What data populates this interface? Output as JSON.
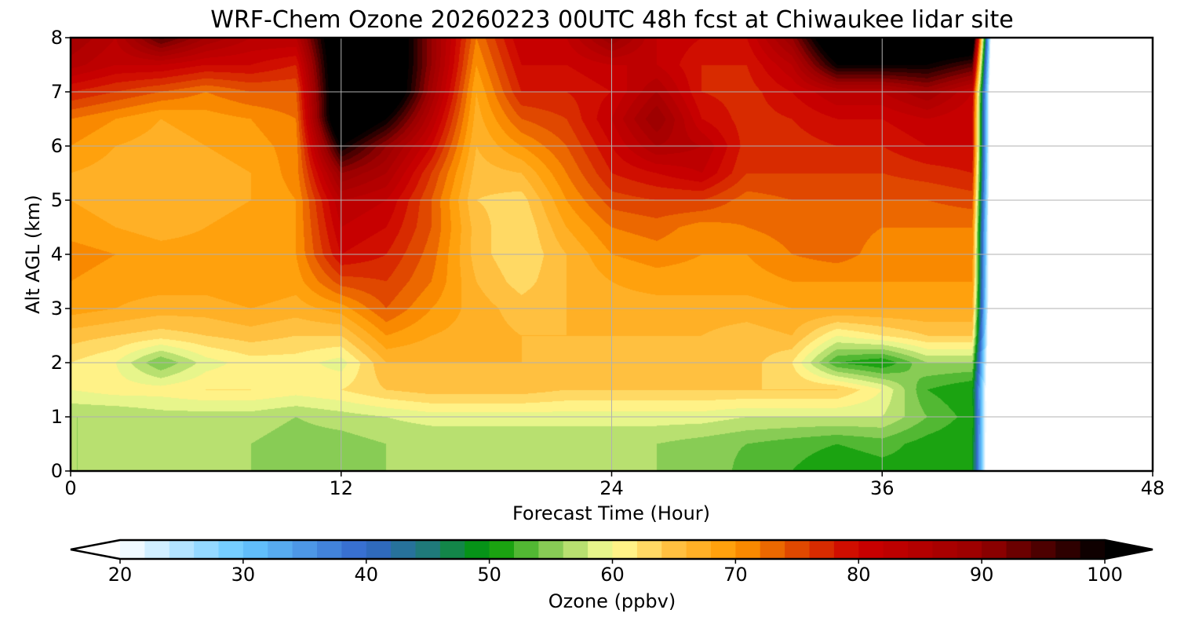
{
  "chart_data": {
    "type": "heatmap",
    "title": "WRF-Chem Ozone  20260223 00UTC 48h fcst at Chiwaukee lidar site",
    "xlabel": "Forecast Time (Hour)",
    "ylabel": "Alt AGL (km)",
    "xlim": [
      0,
      48
    ],
    "ylim": [
      0,
      8
    ],
    "xticks": [
      "0",
      "12",
      "24",
      "36",
      "48"
    ],
    "yticks": [
      "0",
      "1",
      "2",
      "3",
      "4",
      "5",
      "6",
      "7",
      "8"
    ],
    "grid": true,
    "x_hours": [
      0,
      2,
      4,
      6,
      8,
      10,
      12,
      14,
      16,
      18,
      20,
      22,
      24,
      26,
      28,
      30,
      32,
      34,
      36,
      38,
      40,
      41
    ],
    "y_km": [
      0,
      0.5,
      1,
      1.5,
      2,
      2.5,
      3,
      3.5,
      4,
      4.5,
      5,
      5.5,
      6,
      6.5,
      7,
      7.5,
      8
    ],
    "ozone_ppbv_by_hour": [
      [
        56,
        56,
        56,
        60,
        62,
        65,
        69,
        70,
        71,
        69,
        68,
        68,
        70,
        72,
        78,
        85,
        88
      ],
      [
        56,
        56,
        56,
        61,
        60,
        64,
        68,
        69,
        70,
        68,
        67,
        67,
        68,
        70,
        76,
        82,
        84
      ],
      [
        56,
        56,
        57,
        61,
        54,
        63,
        67,
        69,
        69,
        67,
        66,
        66,
        67,
        68,
        74,
        82,
        95
      ],
      [
        56,
        56,
        57,
        62,
        59,
        64,
        67,
        69,
        69,
        68,
        67,
        67,
        68,
        69,
        72,
        80,
        88
      ],
      [
        56,
        56,
        57,
        62,
        61,
        65,
        68,
        70,
        70,
        69,
        68,
        68,
        69,
        70,
        74,
        80,
        84
      ],
      [
        55,
        55,
        56,
        61,
        61,
        64,
        67,
        69,
        70,
        70,
        70,
        71,
        71,
        72,
        74,
        78,
        84
      ],
      [
        55,
        55,
        57,
        62,
        59,
        64,
        69,
        75,
        80,
        82,
        84,
        90,
        100,
        110,
        110,
        110,
        110
      ],
      [
        56,
        56,
        58,
        64,
        66,
        70,
        74,
        76,
        78,
        80,
        82,
        86,
        90,
        100,
        110,
        110,
        110
      ],
      [
        56,
        56,
        59,
        65,
        66,
        68,
        70,
        72,
        73,
        74,
        74,
        76,
        80,
        84,
        88,
        90,
        90
      ],
      [
        56,
        56,
        59,
        65,
        66,
        67,
        67,
        66,
        65,
        65,
        64,
        65,
        66,
        67,
        68,
        70,
        72
      ],
      [
        56,
        56,
        59,
        65,
        66,
        66,
        65,
        63,
        62,
        62,
        63,
        66,
        70,
        74,
        78,
        80,
        82
      ],
      [
        56,
        56,
        59,
        64,
        65,
        66,
        66,
        66,
        66,
        68,
        70,
        72,
        74,
        76,
        78,
        80,
        82
      ],
      [
        56,
        56,
        59,
        64,
        65,
        66,
        67,
        68,
        70,
        72,
        75,
        78,
        80,
        82,
        80,
        82,
        90
      ],
      [
        56,
        56,
        59,
        64,
        65,
        66,
        67,
        69,
        71,
        73,
        76,
        80,
        86,
        90,
        86,
        82,
        82
      ],
      [
        56,
        55,
        59,
        64,
        65,
        66,
        67,
        69,
        70,
        71,
        76,
        82,
        84,
        80,
        78,
        78,
        80
      ],
      [
        53,
        54,
        58,
        64,
        65,
        65,
        67,
        69,
        70,
        72,
        73,
        76,
        77,
        77,
        77,
        78,
        80
      ],
      [
        52,
        53,
        58,
        64,
        62,
        66,
        68,
        70,
        72,
        73,
        74,
        76,
        77,
        78,
        80,
        84,
        90
      ],
      [
        50,
        52,
        58,
        64,
        52,
        60,
        68,
        70,
        73,
        73,
        74,
        76,
        78,
        80,
        84,
        100,
        110
      ],
      [
        51,
        53,
        58,
        60,
        50,
        62,
        68,
        70,
        71,
        72,
        74,
        76,
        78,
        80,
        84,
        100,
        110
      ],
      [
        51,
        51,
        54,
        52,
        56,
        64,
        68,
        70,
        71,
        72,
        74,
        77,
        80,
        82,
        88,
        100,
        110
      ],
      [
        50,
        50,
        51,
        50,
        56,
        64,
        68,
        70,
        71,
        72,
        75,
        78,
        80,
        80,
        82,
        95,
        110
      ],
      [
        0,
        0,
        0,
        0,
        0,
        0,
        0,
        0,
        0,
        0,
        0,
        0,
        0,
        0,
        0,
        0,
        0
      ]
    ],
    "data_end_hour": 41,
    "colorbar": {
      "label": "Ozone  (ppbv)",
      "min": 20,
      "max": 100,
      "step": 2,
      "extend": "both",
      "ticks": [
        "20",
        "30",
        "40",
        "50",
        "60",
        "70",
        "80",
        "90",
        "100"
      ],
      "color_anchors": [
        {
          "v": 20,
          "c": "#ffffff"
        },
        {
          "v": 30,
          "c": "#66c8ff"
        },
        {
          "v": 40,
          "c": "#3366cc"
        },
        {
          "v": 45,
          "c": "#1f7a7a"
        },
        {
          "v": 50,
          "c": "#009900"
        },
        {
          "v": 55,
          "c": "#88cc55"
        },
        {
          "v": 60,
          "c": "#ffff99"
        },
        {
          "v": 65,
          "c": "#ffc040"
        },
        {
          "v": 70,
          "c": "#ff9900"
        },
        {
          "v": 75,
          "c": "#e04800"
        },
        {
          "v": 80,
          "c": "#cc0000"
        },
        {
          "v": 90,
          "c": "#990000"
        },
        {
          "v": 100,
          "c": "#000000"
        }
      ]
    }
  }
}
